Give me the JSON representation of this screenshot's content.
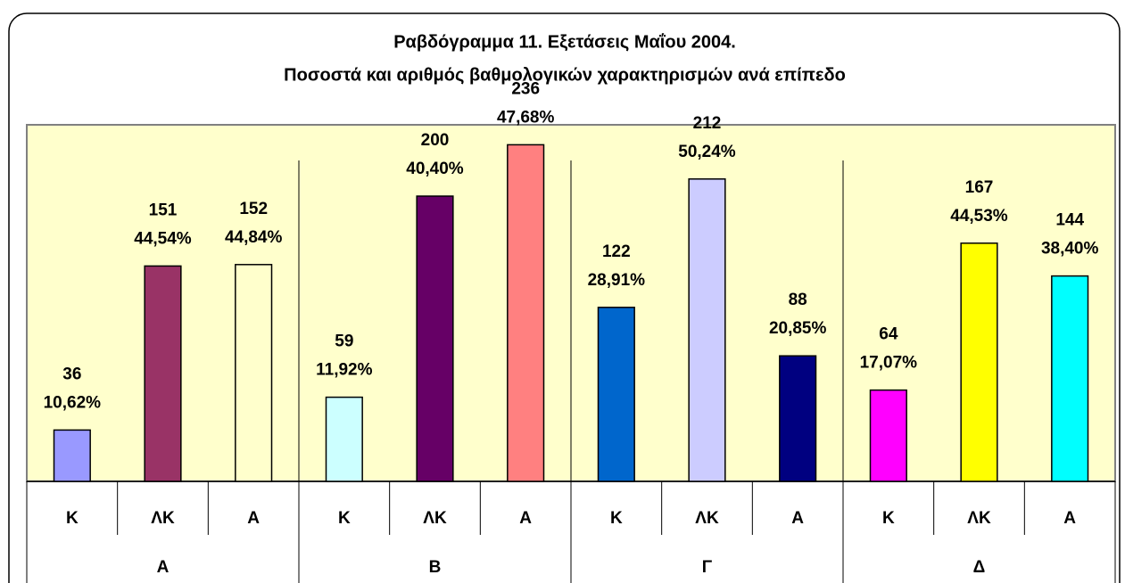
{
  "chart_data": {
    "type": "bar",
    "title": "Ραβδόγραμμα 11. Εξετάσεις Μαΐου 2004.",
    "subtitle": "Ποσοστά και αριθμός βαθμολογικών χαρακτηρισμών ανά επίπεδο",
    "groups": [
      "Α",
      "Β",
      "Γ",
      "Δ"
    ],
    "categories": [
      "Κ",
      "ΛΚ",
      "Α",
      "Κ",
      "ΛΚ",
      "Α",
      "Κ",
      "ΛΚ",
      "Α",
      "Κ",
      "ΛΚ",
      "Α"
    ],
    "values": [
      36,
      151,
      152,
      59,
      200,
      236,
      122,
      212,
      88,
      64,
      167,
      144
    ],
    "percent_labels": [
      "10,62%",
      "44,54%",
      "44,84%",
      "11,92%",
      "40,40%",
      "47,68%",
      "28,91%",
      "50,24%",
      "20,85%",
      "17,07%",
      "44,53%",
      "38,40%"
    ],
    "colors": [
      "#9999ff",
      "#993366",
      "#ffffcc",
      "#ccffff",
      "#660066",
      "#ff8080",
      "#0066cc",
      "#ccccff",
      "#000080",
      "#ff00ff",
      "#ffff00",
      "#00ffff"
    ],
    "plot_background": "#ffffcc",
    "ylim": [
      0,
      250
    ]
  }
}
